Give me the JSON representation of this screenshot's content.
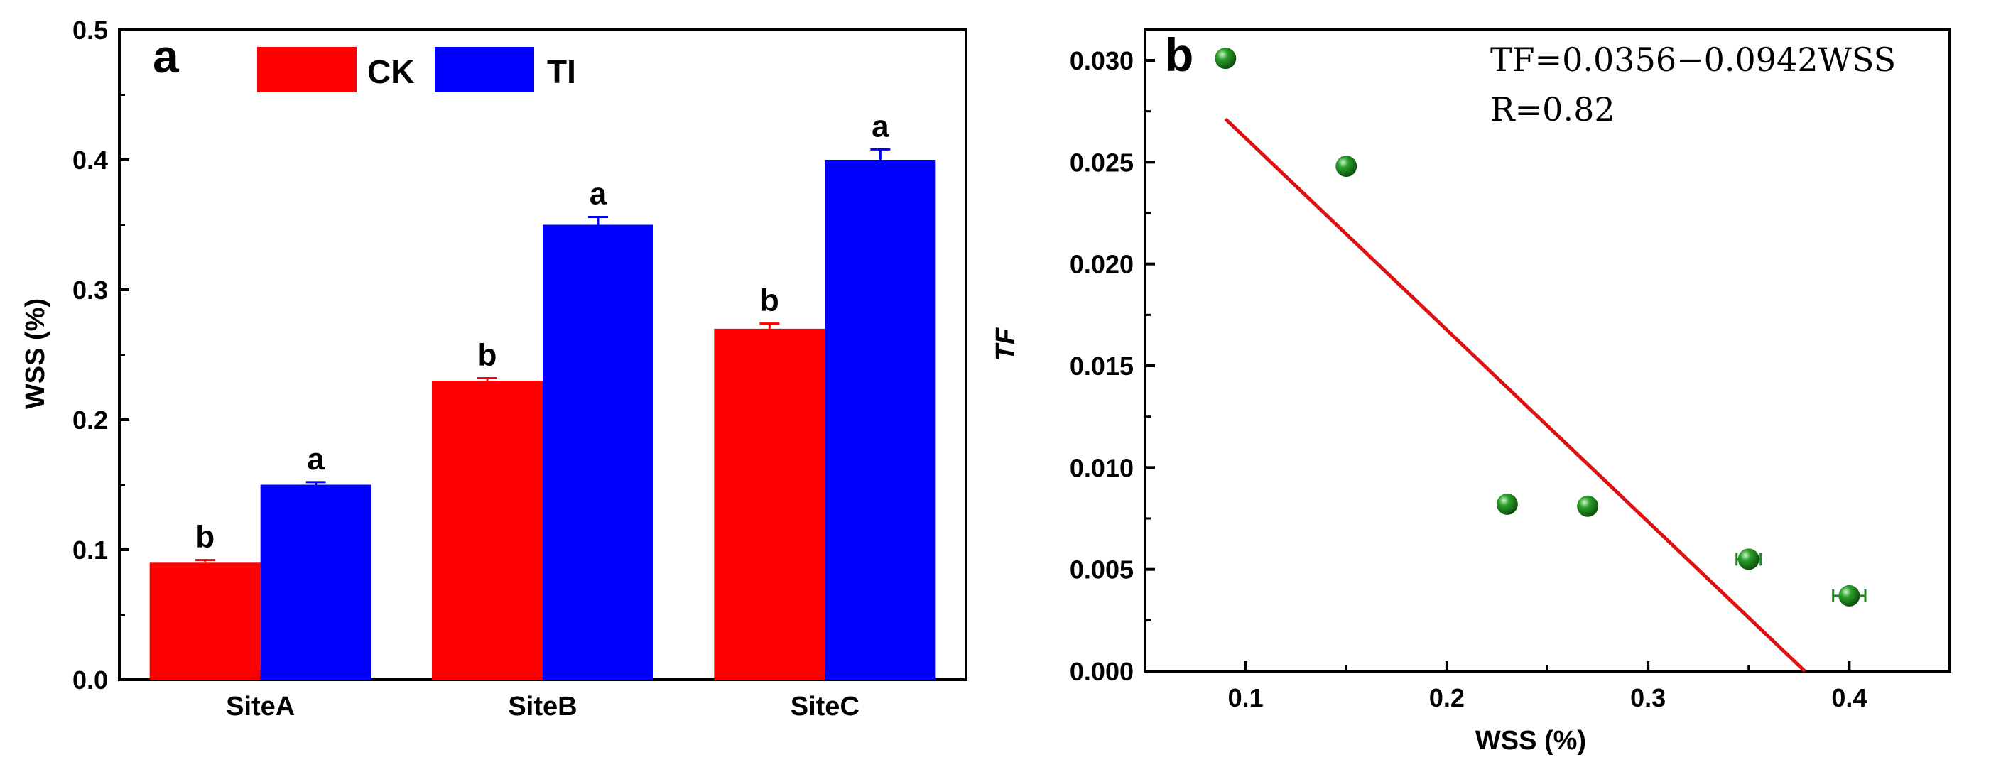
{
  "chart_data": [
    {
      "panel": "a",
      "type": "bar",
      "categories": [
        "SiteA",
        "SiteB",
        "SiteC"
      ],
      "series": [
        {
          "name": "CK",
          "color": "#ff0000",
          "values": [
            0.09,
            0.23,
            0.27
          ],
          "errors": [
            0.002,
            0.002,
            0.004
          ],
          "letters": [
            "b",
            "b",
            "b"
          ]
        },
        {
          "name": "TI",
          "color": "#0000ff",
          "values": [
            0.15,
            0.35,
            0.4
          ],
          "errors": [
            0.002,
            0.006,
            0.008
          ],
          "letters": [
            "a",
            "a",
            "a"
          ]
        }
      ],
      "ylabel": "WSS (%)",
      "xlabel": "",
      "ylim": [
        0,
        0.5
      ],
      "yticks": [
        "0.0",
        "0.1",
        "0.2",
        "0.3",
        "0.4",
        "0.5"
      ],
      "legend": "top-left"
    },
    {
      "panel": "b",
      "type": "scatter",
      "points": [
        {
          "x": 0.09,
          "y": 0.0301,
          "xerr": 0.0
        },
        {
          "x": 0.15,
          "y": 0.0248,
          "xerr": 0.0
        },
        {
          "x": 0.23,
          "y": 0.0082,
          "xerr": 0.0
        },
        {
          "x": 0.27,
          "y": 0.0081,
          "xerr": 0.0
        },
        {
          "x": 0.35,
          "y": 0.0055,
          "xerr": 0.006
        },
        {
          "x": 0.4,
          "y": 0.0037,
          "xerr": 0.008
        }
      ],
      "point_color": "#1a8c1a",
      "fit_line": {
        "color": "#dd1111",
        "intercept": 0.0356,
        "slope": -0.0942,
        "x_range": [
          0.09,
          0.378
        ]
      },
      "equation": "TF=0.0356−0.0942WSS",
      "r_text": "R=0.82",
      "xlabel": "WSS (%)",
      "ylabel": "TF",
      "xlim": [
        0.05,
        0.45
      ],
      "ylim": [
        0,
        0.0315
      ],
      "xticks": [
        {
          "value": 0.1,
          "label": "0.1"
        },
        {
          "value": 0.2,
          "label": "0.2"
        },
        {
          "value": 0.3,
          "label": "0.3"
        },
        {
          "value": 0.4,
          "label": "0.4"
        }
      ],
      "yticks": [
        {
          "value": 0.0,
          "label": "0.000"
        },
        {
          "value": 0.005,
          "label": "0.005"
        },
        {
          "value": 0.01,
          "label": "0.010"
        },
        {
          "value": 0.015,
          "label": "0.015"
        },
        {
          "value": 0.02,
          "label": "0.020"
        },
        {
          "value": 0.025,
          "label": "0.025"
        },
        {
          "value": 0.03,
          "label": "0.030"
        }
      ]
    }
  ]
}
